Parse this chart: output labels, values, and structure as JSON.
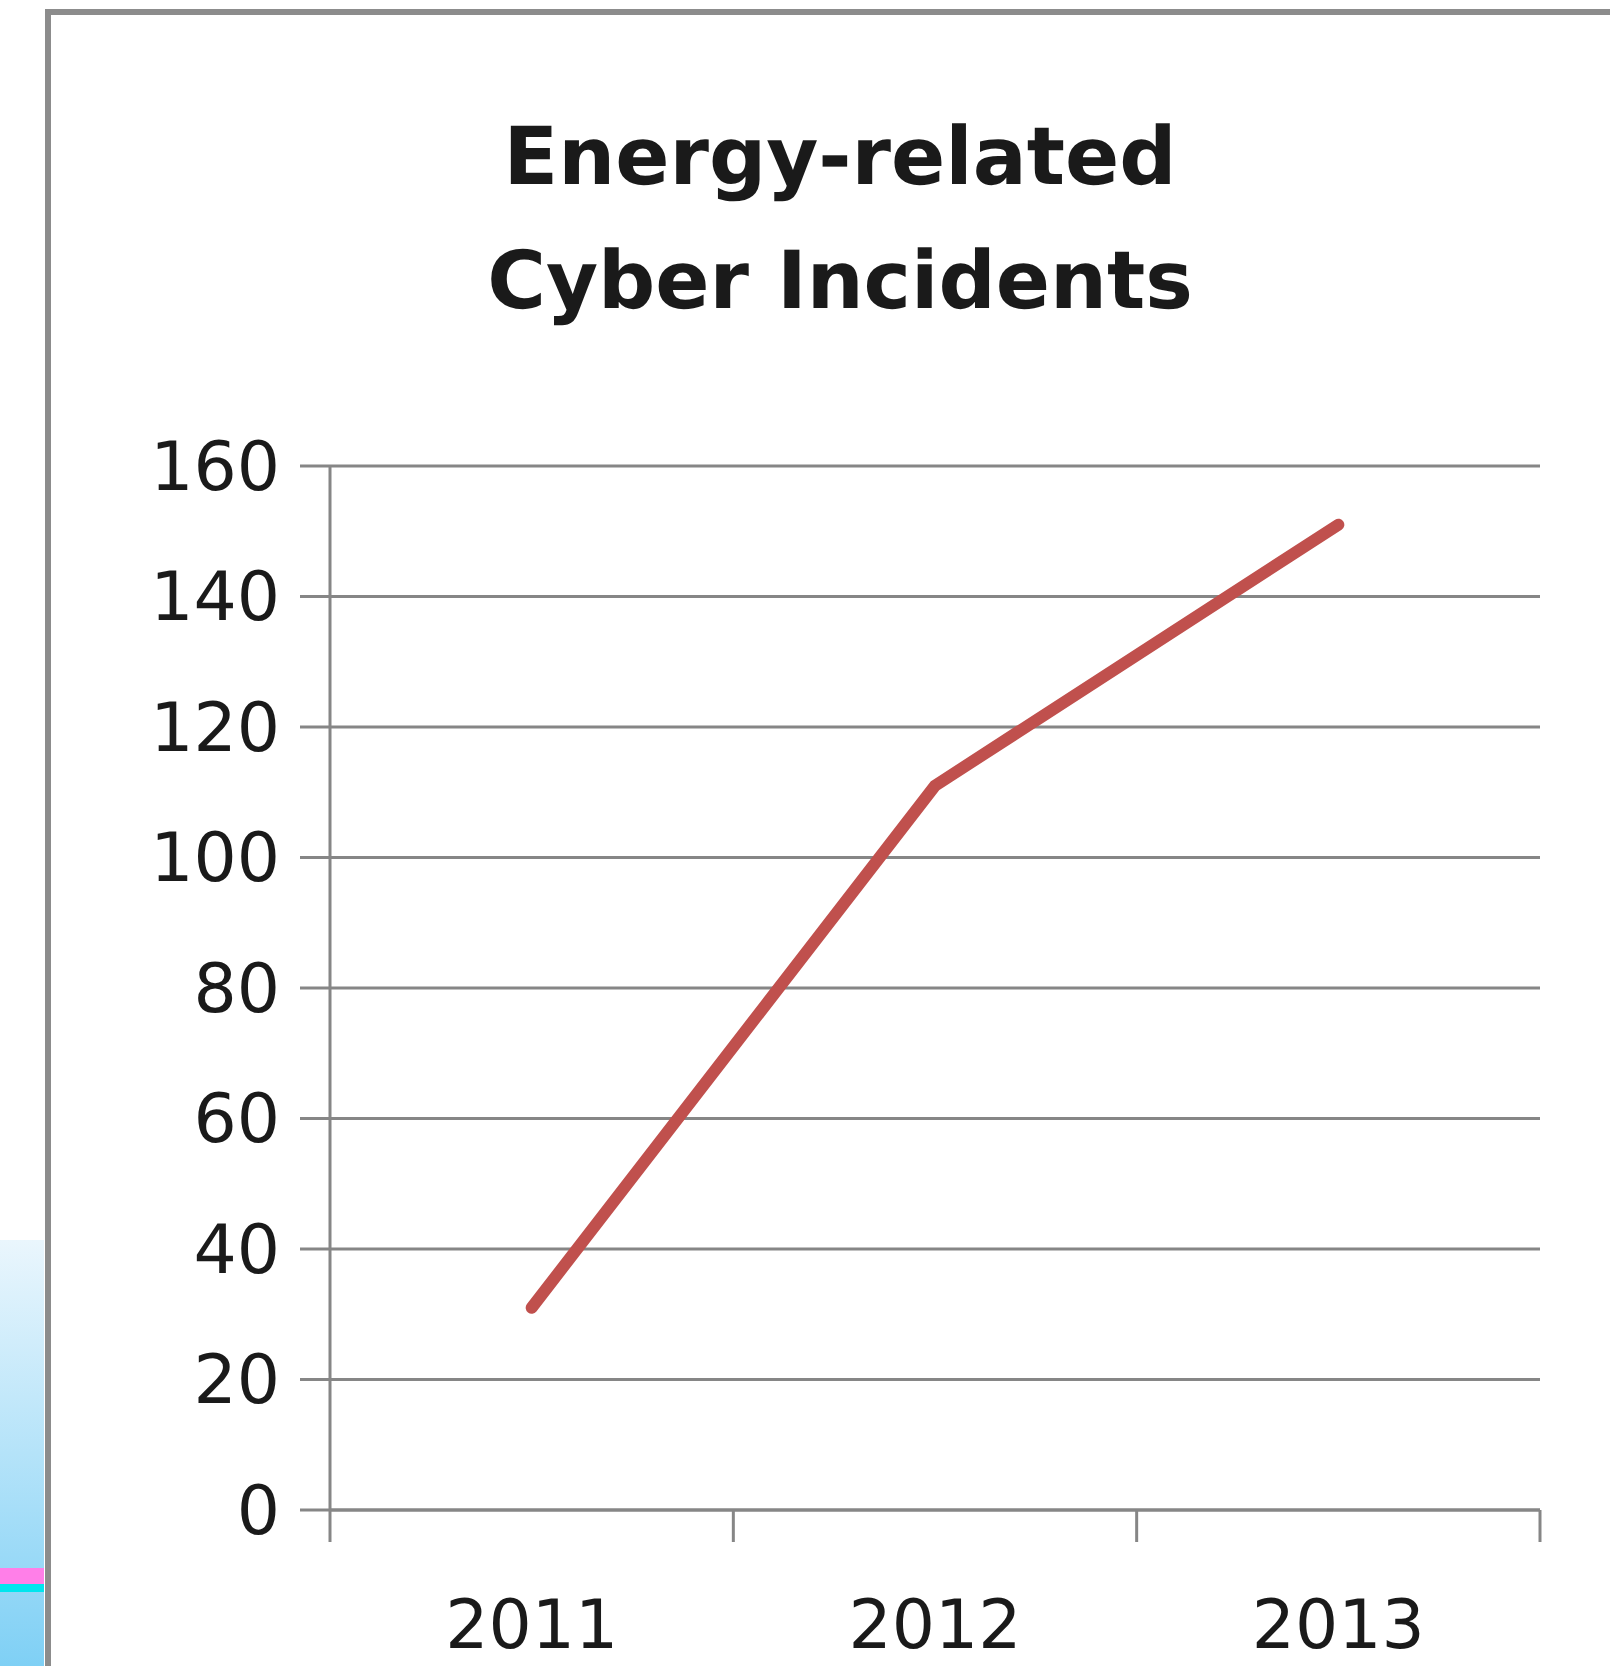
{
  "chart_data": {
    "type": "line",
    "title": "Energy-related Cyber Incidents",
    "categories": [
      "2011",
      "2012",
      "2013"
    ],
    "series": [
      {
        "color": "#c0504d",
        "values": [
          31,
          111,
          151
        ]
      }
    ],
    "ylim": [
      0,
      160
    ],
    "yticks": [
      0,
      20,
      40,
      60,
      80,
      100,
      120,
      140,
      160
    ],
    "grid": "y",
    "marker": "none",
    "line_style": "solid"
  }
}
